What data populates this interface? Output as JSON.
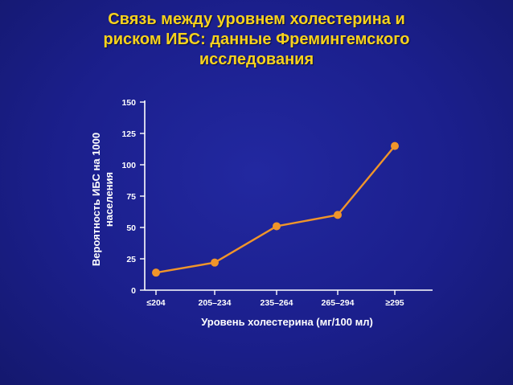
{
  "title_lines": [
    "Связь между уровнем холестерина и",
    "риском ИБС: данные Фремингемского",
    "исследования"
  ],
  "colors": {
    "background": "#1b1f8c",
    "title": "#f7d21d",
    "series": "#f0952a",
    "axis": "#ffffff"
  },
  "chart_data": {
    "type": "line",
    "title": "Связь между уровнем холестерина и риском ИБС: данные Фремингемского исследования",
    "xlabel": "Уровень холестерина  (мг/100 мл)",
    "ylabel_lines": [
      "Вероятность ИБС на 1000",
      "населения"
    ],
    "categories": [
      "≤204",
      "205–234",
      "235–264",
      "265–294",
      "≥295"
    ],
    "values": [
      14,
      22,
      51,
      60,
      115
    ],
    "ylim": [
      0,
      150
    ],
    "yticks": [
      0,
      25,
      50,
      75,
      100,
      125,
      150
    ],
    "grid": false,
    "legend": "none"
  }
}
